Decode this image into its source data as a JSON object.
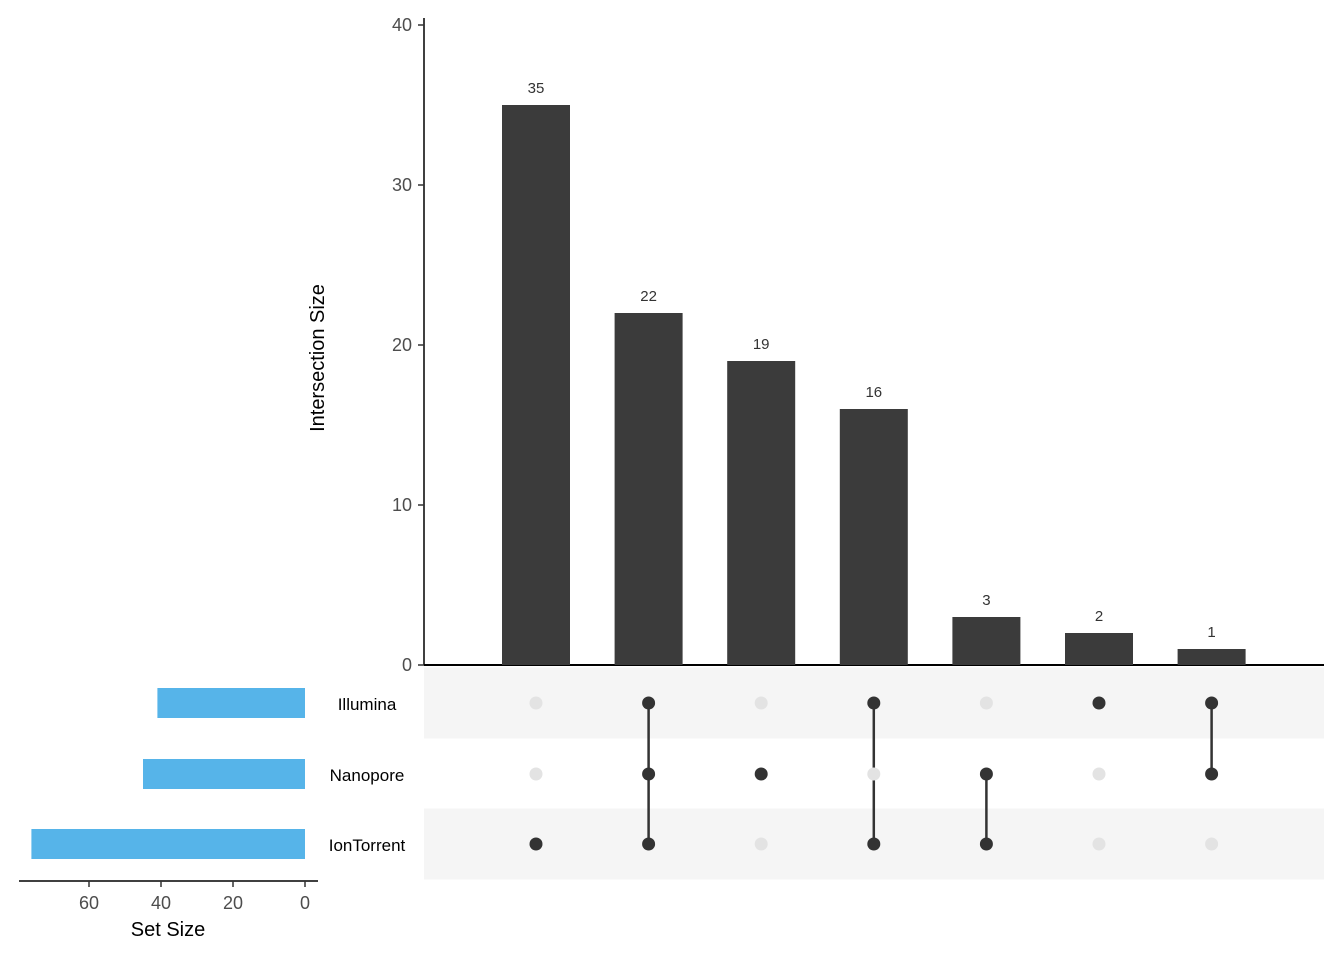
{
  "chart_data": {
    "type": "upset",
    "title": "",
    "sets": [
      "Illumina",
      "Nanopore",
      "IonTorrent"
    ],
    "set_sizes": [
      41,
      45,
      76
    ],
    "set_size_axis": {
      "label": "Set Size",
      "ticks": [
        60,
        40,
        20,
        0
      ],
      "range": [
        80,
        0
      ]
    },
    "intersection_axis": {
      "label": "Intersection Size",
      "ticks": [
        0,
        10,
        20,
        30,
        40
      ],
      "range": [
        0,
        40
      ]
    },
    "intersections": [
      {
        "sets": [
          "IonTorrent"
        ],
        "size": 35
      },
      {
        "sets": [
          "Illumina",
          "Nanopore",
          "IonTorrent"
        ],
        "size": 22
      },
      {
        "sets": [
          "Nanopore"
        ],
        "size": 19
      },
      {
        "sets": [
          "Illumina",
          "IonTorrent"
        ],
        "size": 16
      },
      {
        "sets": [
          "Nanopore",
          "IonTorrent"
        ],
        "size": 3
      },
      {
        "sets": [
          "Illumina"
        ],
        "size": 2
      },
      {
        "sets": [
          "Illumina",
          "Nanopore"
        ],
        "size": 1
      }
    ],
    "categories": [
      "IonTorrent",
      "Illumina&Nanopore&IonTorrent",
      "Nanopore",
      "Illumina&IonTorrent",
      "Nanopore&IonTorrent",
      "Illumina",
      "Illumina&Nanopore"
    ],
    "values": [
      35,
      22,
      19,
      16,
      3,
      2,
      1
    ],
    "colors": {
      "bars": "#3b3b3b",
      "set_bars": "#56b4e9",
      "dot_active": "#333333",
      "dot_inactive": "#e3e3e3",
      "stripe": "#f5f5f5"
    },
    "grid": false
  }
}
